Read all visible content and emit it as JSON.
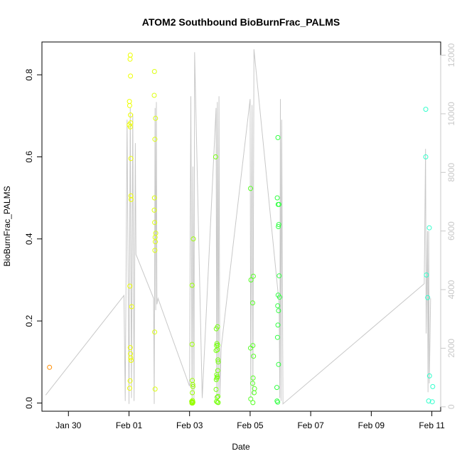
{
  "chart_data": {
    "type": "scatter",
    "title": "ATOM2 Southbound BioBurnFrac_PALMS",
    "xlabel": "Date",
    "ylabel": "BioBurnFrac_PALMS",
    "x_type": "date",
    "xlim": [
      "2017-01-29T03:00",
      "2017-02-11T07:00"
    ],
    "ylim": [
      -0.02,
      0.88
    ],
    "y2lim": [
      -150,
      12450
    ],
    "x_ticks": [
      {
        "value": "2017-01-30",
        "label": "Jan 30"
      },
      {
        "value": "2017-02-01",
        "label": "Feb 01"
      },
      {
        "value": "2017-02-03",
        "label": "Feb 03"
      },
      {
        "value": "2017-02-05",
        "label": "Feb 05"
      },
      {
        "value": "2017-02-07",
        "label": "Feb 07"
      },
      {
        "value": "2017-02-09",
        "label": "Feb 09"
      },
      {
        "value": "2017-02-11",
        "label": "Feb 11"
      }
    ],
    "y_ticks": [
      {
        "value": 0.0,
        "label": "0.0"
      },
      {
        "value": 0.2,
        "label": "0.2"
      },
      {
        "value": 0.4,
        "label": "0.4"
      },
      {
        "value": 0.6,
        "label": "0.6"
      },
      {
        "value": 0.8,
        "label": "0.8"
      }
    ],
    "y2_ticks": [
      {
        "value": 0,
        "label": "0"
      },
      {
        "value": 2000,
        "label": "2000"
      },
      {
        "value": 4000,
        "label": "4000"
      },
      {
        "value": 6000,
        "label": "6000"
      },
      {
        "value": 8000,
        "label": "8000"
      },
      {
        "value": 10000,
        "label": "10000"
      },
      {
        "value": 12000,
        "label": "12000"
      }
    ],
    "colors": {
      "altitude_line": "#c8c8c8",
      "axis": "#000000",
      "right_axis": "#c8c8c8"
    },
    "point_groups": [
      {
        "color": "#ff8c00",
        "points": [
          [
            "2017-01-29T09:00",
            0.087
          ]
        ]
      },
      {
        "color": "#eeff00",
        "points": [
          [
            "2017-02-01T01:00",
            0.848
          ],
          [
            "2017-02-01T00:50",
            0.838
          ],
          [
            "2017-02-01T01:10",
            0.797
          ],
          [
            "2017-02-01T00:20",
            0.735
          ],
          [
            "2017-02-01T00:30",
            0.725
          ],
          [
            "2017-02-01T01:10",
            0.702
          ],
          [
            "2017-02-01T00:10",
            0.678
          ],
          [
            "2017-02-01T01:20",
            0.683
          ],
          [
            "2017-02-01T01:00",
            0.673
          ],
          [
            "2017-02-01T01:30",
            0.596
          ],
          [
            "2017-02-01T01:30",
            0.505
          ],
          [
            "2017-02-01T01:40",
            0.496
          ],
          [
            "2017-02-01T00:40",
            0.285
          ],
          [
            "2017-02-01T02:10",
            0.235
          ],
          [
            "2017-02-01T01:00",
            0.135
          ],
          [
            "2017-02-01T01:10",
            0.12
          ],
          [
            "2017-02-01T01:20",
            0.11
          ],
          [
            "2017-02-01T01:40",
            0.104
          ],
          [
            "2017-02-01T00:50",
            0.054
          ],
          [
            "2017-02-01T00:30",
            0.036
          ]
        ]
      },
      {
        "color": "#ddff10",
        "points": [
          [
            "2017-02-01T20:10",
            0.808
          ],
          [
            "2017-02-01T20:00",
            0.75
          ],
          [
            "2017-02-01T21:00",
            0.694
          ],
          [
            "2017-02-01T20:30",
            0.643
          ],
          [
            "2017-02-01T20:10",
            0.5
          ],
          [
            "2017-02-01T20:00",
            0.47
          ],
          [
            "2017-02-01T20:20",
            0.44
          ],
          [
            "2017-02-01T21:10",
            0.414
          ],
          [
            "2017-02-01T20:40",
            0.404
          ],
          [
            "2017-02-01T20:50",
            0.393
          ],
          [
            "2017-02-01T20:30",
            0.372
          ],
          [
            "2017-02-01T20:20",
            0.173
          ],
          [
            "2017-02-01T20:40",
            0.034
          ]
        ]
      },
      {
        "color": "#99ff00",
        "points": [
          [
            "2017-02-03T03:00",
            0.4
          ],
          [
            "2017-02-03T02:00",
            0.287
          ],
          [
            "2017-02-03T02:00",
            0.143
          ],
          [
            "2017-02-03T02:10",
            0.055
          ],
          [
            "2017-02-03T02:30",
            0.045
          ],
          [
            "2017-02-03T02:40",
            0.04
          ],
          [
            "2017-02-03T02:10",
            0.025
          ],
          [
            "2017-02-03T02:20",
            0.006
          ],
          [
            "2017-02-03T01:40",
            0.004
          ],
          [
            "2017-02-03T02:00",
            0.003
          ],
          [
            "2017-02-03T02:40",
            0.002
          ],
          [
            "2017-02-03T01:50",
            0.002
          ],
          [
            "2017-02-03T02:30",
            0.001
          ],
          [
            "2017-02-03T02:10",
            0.001
          ],
          [
            "2017-02-03T02:20",
            0.0
          ],
          [
            "2017-02-03T01:50",
            0.0
          ]
        ]
      },
      {
        "color": "#77ff10",
        "points": [
          [
            "2017-02-03T20:40",
            0.6
          ],
          [
            "2017-02-03T22:10",
            0.186
          ],
          [
            "2017-02-03T21:10",
            0.181
          ],
          [
            "2017-02-03T21:40",
            0.145
          ],
          [
            "2017-02-03T22:20",
            0.141
          ],
          [
            "2017-02-03T21:20",
            0.14
          ],
          [
            "2017-02-03T22:00",
            0.13
          ],
          [
            "2017-02-03T21:00",
            0.128
          ],
          [
            "2017-02-03T22:30",
            0.105
          ],
          [
            "2017-02-03T22:40",
            0.1
          ],
          [
            "2017-02-03T22:20",
            0.079
          ],
          [
            "2017-02-03T21:30",
            0.069
          ],
          [
            "2017-02-03T21:50",
            0.064
          ],
          [
            "2017-02-03T21:40",
            0.061
          ],
          [
            "2017-02-03T21:10",
            0.057
          ],
          [
            "2017-02-03T21:00",
            0.033
          ],
          [
            "2017-02-03T22:30",
            0.016
          ],
          [
            "2017-02-03T21:50",
            0.014
          ],
          [
            "2017-02-03T21:20",
            0.004
          ],
          [
            "2017-02-03T22:00",
            0.002
          ],
          [
            "2017-02-03T22:40",
            0.001
          ]
        ]
      },
      {
        "color": "#55ff22",
        "points": [
          [
            "2017-02-05T00:20",
            0.523
          ],
          [
            "2017-02-05T02:30",
            0.309
          ],
          [
            "2017-02-05T00:40",
            0.3
          ],
          [
            "2017-02-05T02:00",
            0.244
          ],
          [
            "2017-02-05T02:10",
            0.14
          ],
          [
            "2017-02-05T00:20",
            0.134
          ],
          [
            "2017-02-05T02:40",
            0.114
          ],
          [
            "2017-02-05T02:20",
            0.061
          ],
          [
            "2017-02-05T02:00",
            0.048
          ],
          [
            "2017-02-05T03:30",
            0.035
          ],
          [
            "2017-02-05T03:10",
            0.025
          ],
          [
            "2017-02-05T00:30",
            0.01
          ],
          [
            "2017-02-05T02:10",
            0.001
          ]
        ]
      },
      {
        "color": "#33ff44",
        "points": [
          [
            "2017-02-05T22:00",
            0.647
          ],
          [
            "2017-02-05T21:30",
            0.5
          ],
          [
            "2017-02-05T22:10",
            0.484
          ],
          [
            "2017-02-05T22:50",
            0.484
          ],
          [
            "2017-02-05T22:40",
            0.435
          ],
          [
            "2017-02-05T22:20",
            0.43
          ],
          [
            "2017-02-05T23:00",
            0.31
          ],
          [
            "2017-02-05T22:10",
            0.263
          ],
          [
            "2017-02-05T23:20",
            0.258
          ],
          [
            "2017-02-05T21:50",
            0.237
          ],
          [
            "2017-02-05T22:30",
            0.225
          ],
          [
            "2017-02-05T22:00",
            0.19
          ],
          [
            "2017-02-05T21:40",
            0.16
          ],
          [
            "2017-02-05T22:30",
            0.094
          ],
          [
            "2017-02-05T21:10",
            0.038
          ],
          [
            "2017-02-05T21:20",
            0.005
          ],
          [
            "2017-02-05T21:50",
            0.002
          ]
        ]
      },
      {
        "color": "#33ffcc",
        "points": [
          [
            "2017-02-10T19:10",
            0.716
          ],
          [
            "2017-02-10T19:10",
            0.6
          ],
          [
            "2017-02-10T22:00",
            0.427
          ],
          [
            "2017-02-10T19:40",
            0.312
          ],
          [
            "2017-02-10T20:40",
            0.257
          ],
          [
            "2017-02-10T22:10",
            0.066
          ],
          [
            "2017-02-11T00:40",
            0.04
          ],
          [
            "2017-02-10T21:30",
            0.005
          ],
          [
            "2017-02-11T00:20",
            0.003
          ]
        ]
      }
    ],
    "altitude_path": [
      [
        "2017-01-29T06:00",
        400
      ],
      [
        "2017-01-31T20:00",
        3800
      ],
      [
        "2017-01-31T21:00",
        200
      ],
      [
        "2017-01-31T22:30",
        9800
      ],
      [
        "2017-02-01T00:00",
        100
      ],
      [
        "2017-02-01T01:00",
        10200
      ],
      [
        "2017-02-01T02:00",
        300
      ],
      [
        "2017-02-01T03:00",
        10000
      ],
      [
        "2017-02-01T04:00",
        200
      ],
      [
        "2017-02-01T05:00",
        9000
      ],
      [
        "2017-02-01T05:30",
        5200
      ],
      [
        "2017-02-01T19:30",
        3700
      ],
      [
        "2017-02-01T20:00",
        100
      ],
      [
        "2017-02-01T20:40",
        10200
      ],
      [
        "2017-02-01T21:10",
        3300
      ],
      [
        "2017-02-01T21:40",
        10400
      ],
      [
        "2017-02-01T22:10",
        3500
      ],
      [
        "2017-02-01T23:00",
        3700
      ],
      [
        "2017-02-03T00:00",
        700
      ],
      [
        "2017-02-03T01:00",
        10600
      ],
      [
        "2017-02-03T02:00",
        100
      ],
      [
        "2017-02-03T02:40",
        8200
      ],
      [
        "2017-02-03T03:30",
        200
      ],
      [
        "2017-02-03T04:00",
        12100
      ],
      [
        "2017-02-03T10:00",
        300
      ],
      [
        "2017-02-03T21:00",
        10200
      ],
      [
        "2017-02-03T21:30",
        300
      ],
      [
        "2017-02-03T22:00",
        10400
      ],
      [
        "2017-02-03T22:40",
        200
      ],
      [
        "2017-02-03T23:20",
        10600
      ],
      [
        "2017-02-04T00:00",
        300
      ],
      [
        "2017-02-04T01:00",
        2000
      ],
      [
        "2017-02-05T00:00",
        10500
      ],
      [
        "2017-02-05T00:30",
        300
      ],
      [
        "2017-02-05T01:30",
        10300
      ],
      [
        "2017-02-05T02:10",
        400
      ],
      [
        "2017-02-05T03:00",
        12200
      ],
      [
        "2017-02-05T23:00",
        3500
      ],
      [
        "2017-02-05T23:30",
        300
      ],
      [
        "2017-02-06T00:00",
        10500
      ],
      [
        "2017-02-06T00:30",
        200
      ],
      [
        "2017-02-06T01:00",
        9800
      ],
      [
        "2017-02-06T02:00",
        100
      ],
      [
        "2017-02-10T18:00",
        4200
      ],
      [
        "2017-02-10T19:00",
        8800
      ],
      [
        "2017-02-10T19:30",
        2500
      ],
      [
        "2017-02-10T20:30",
        6000
      ],
      [
        "2017-02-10T21:00",
        500
      ],
      [
        "2017-02-10T21:30",
        6000
      ],
      [
        "2017-02-10T22:00",
        800
      ],
      [
        "2017-02-10T23:00",
        3700
      ]
    ]
  }
}
